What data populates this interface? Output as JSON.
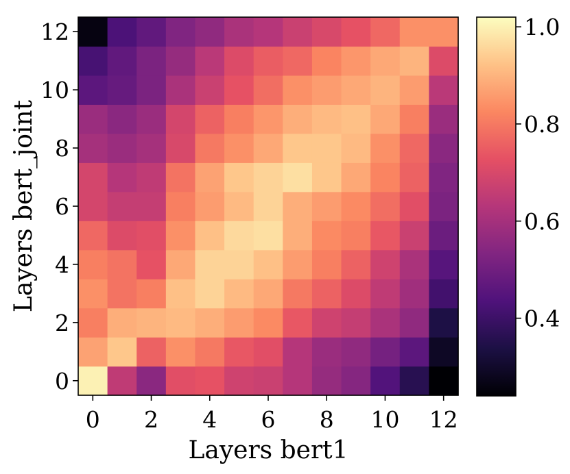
{
  "chart_data": {
    "type": "heatmap",
    "xlabel": "Layers bert1",
    "ylabel": "Layers bert_joint",
    "x": [
      0,
      1,
      2,
      3,
      4,
      5,
      6,
      7,
      8,
      9,
      10,
      11,
      12
    ],
    "y": [
      0,
      1,
      2,
      3,
      4,
      5,
      6,
      7,
      8,
      9,
      10,
      11,
      12
    ],
    "x_ticks": [
      "0",
      "2",
      "4",
      "6",
      "8",
      "10",
      "12"
    ],
    "y_ticks": [
      "0",
      "2",
      "4",
      "6",
      "8",
      "10",
      "12"
    ],
    "colorbar": {
      "min": 0.24,
      "max": 1.02,
      "ticks": [
        "0.4",
        "0.6",
        "0.8",
        "1.0"
      ],
      "tick_values": [
        0.4,
        0.6,
        0.8,
        1.0
      ],
      "colormap": "magma"
    },
    "z_rows_bottom_to_top": [
      [
        1.0,
        0.65,
        0.55,
        0.72,
        0.73,
        0.68,
        0.67,
        0.63,
        0.57,
        0.54,
        0.44,
        0.36,
        0.24
      ],
      [
        0.87,
        0.93,
        0.76,
        0.84,
        0.8,
        0.74,
        0.72,
        0.63,
        0.58,
        0.56,
        0.51,
        0.46,
        0.29
      ],
      [
        0.81,
        0.89,
        0.9,
        0.91,
        0.89,
        0.86,
        0.83,
        0.74,
        0.68,
        0.66,
        0.61,
        0.56,
        0.34
      ],
      [
        0.84,
        0.79,
        0.81,
        0.92,
        0.95,
        0.91,
        0.88,
        0.8,
        0.76,
        0.71,
        0.65,
        0.59,
        0.41
      ],
      [
        0.81,
        0.79,
        0.73,
        0.88,
        0.95,
        0.95,
        0.92,
        0.86,
        0.81,
        0.76,
        0.68,
        0.61,
        0.45
      ],
      [
        0.77,
        0.71,
        0.72,
        0.84,
        0.92,
        0.96,
        0.97,
        0.89,
        0.83,
        0.81,
        0.74,
        0.67,
        0.49
      ],
      [
        0.69,
        0.66,
        0.66,
        0.81,
        0.86,
        0.91,
        0.95,
        0.89,
        0.86,
        0.83,
        0.78,
        0.72,
        0.52
      ],
      [
        0.69,
        0.63,
        0.65,
        0.79,
        0.87,
        0.93,
        0.95,
        0.97,
        0.93,
        0.88,
        0.82,
        0.76,
        0.53
      ],
      [
        0.6,
        0.58,
        0.6,
        0.7,
        0.8,
        0.84,
        0.88,
        0.93,
        0.93,
        0.91,
        0.84,
        0.77,
        0.55
      ],
      [
        0.58,
        0.55,
        0.58,
        0.69,
        0.76,
        0.81,
        0.85,
        0.89,
        0.91,
        0.92,
        0.88,
        0.81,
        0.58
      ],
      [
        0.46,
        0.48,
        0.52,
        0.61,
        0.67,
        0.73,
        0.78,
        0.84,
        0.86,
        0.88,
        0.9,
        0.86,
        0.64
      ],
      [
        0.42,
        0.47,
        0.52,
        0.57,
        0.64,
        0.71,
        0.75,
        0.77,
        0.82,
        0.85,
        0.88,
        0.9,
        0.71
      ],
      [
        0.26,
        0.43,
        0.47,
        0.53,
        0.56,
        0.61,
        0.63,
        0.67,
        0.7,
        0.73,
        0.77,
        0.84,
        0.84
      ]
    ]
  }
}
